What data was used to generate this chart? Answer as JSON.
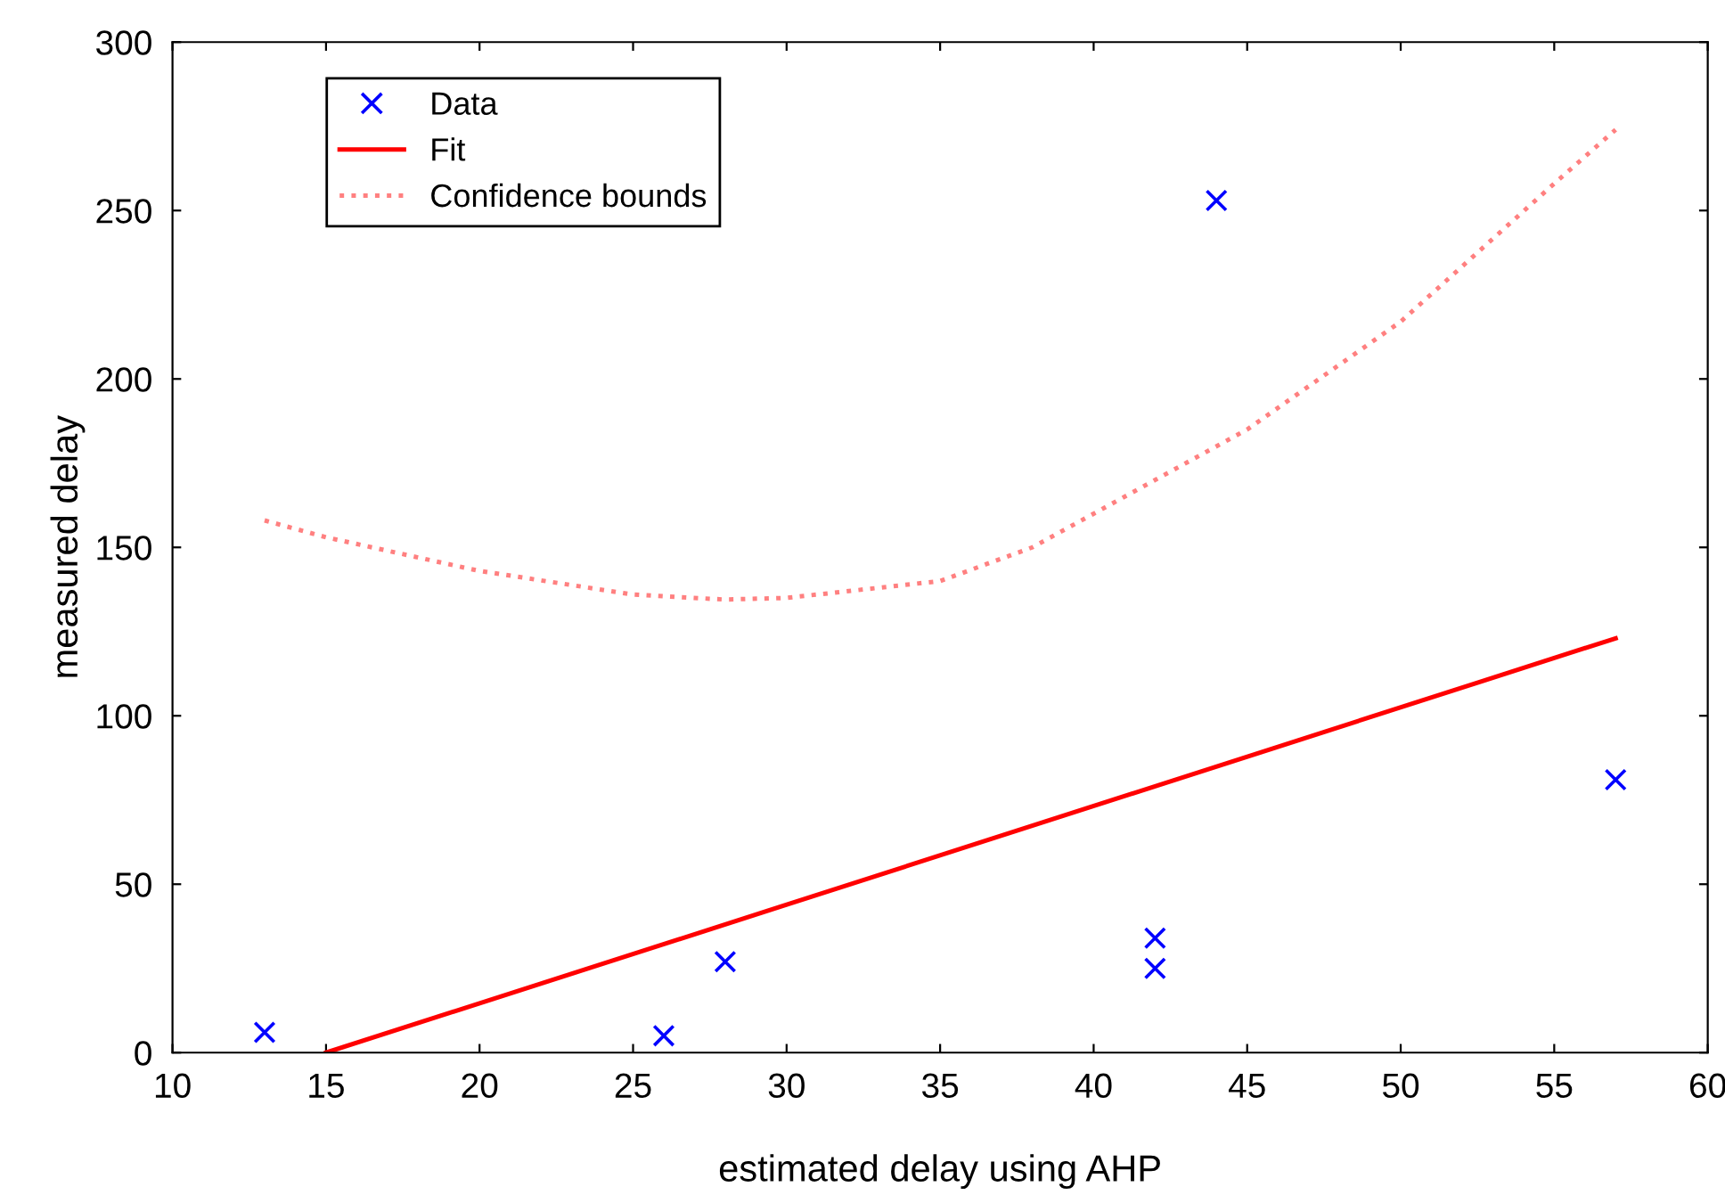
{
  "chart_data": {
    "type": "scatter",
    "xlabel": "estimated delay using AHP",
    "ylabel": "measured delay",
    "xlim": [
      10,
      60
    ],
    "xticks": [
      10,
      15,
      20,
      25,
      30,
      35,
      40,
      45,
      50,
      55,
      60
    ],
    "ylim": [
      0,
      300
    ],
    "yticks": [
      0,
      50,
      100,
      150,
      200,
      250,
      300
    ],
    "grid": false,
    "legend": "top left",
    "series": [
      {
        "name": "Data",
        "color": "#0000ff",
        "marker": "cross",
        "x": [
          13,
          26,
          28,
          42,
          42,
          44,
          57
        ],
        "values": [
          6,
          5,
          27,
          34,
          25,
          253,
          81
        ]
      },
      {
        "name": "Fit",
        "type": "line",
        "color": "#ff0000",
        "line_style": "solid",
        "marker": "none",
        "x": [
          15,
          57
        ],
        "values": [
          0,
          123
        ]
      },
      {
        "name": "Confidence bounds",
        "type": "line",
        "color": "#ff8080",
        "line_style": "dotted",
        "marker": "none",
        "x": [
          13,
          15,
          20,
          25,
          28,
          30,
          35,
          38,
          40,
          45,
          50,
          55,
          57
        ],
        "values": [
          158,
          153,
          143,
          136,
          134.5,
          135,
          140,
          150,
          160,
          185,
          217,
          258,
          274
        ]
      }
    ]
  }
}
